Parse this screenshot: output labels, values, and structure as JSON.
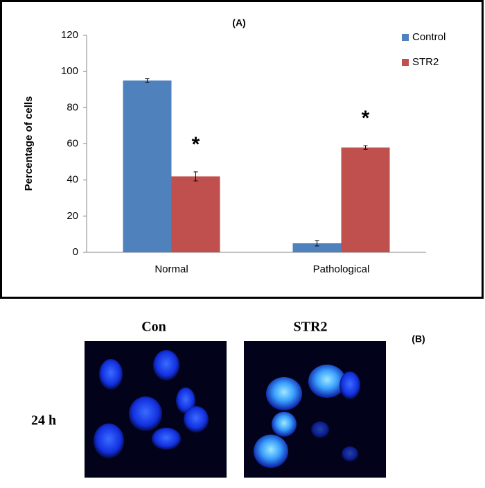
{
  "chart_data": {
    "type": "bar",
    "title": "(A)",
    "y_label": "Percentage of cells",
    "categories": [
      "Normal",
      "Pathological"
    ],
    "series": [
      {
        "name": "Control",
        "color": "#4f81bd",
        "values": [
          95,
          5
        ],
        "errors": [
          1,
          1.5
        ]
      },
      {
        "name": "STR2",
        "color": "#c0504d",
        "values": [
          42,
          58
        ],
        "errors": [
          2.5,
          1
        ]
      }
    ],
    "annotations": [
      "*",
      "*"
    ],
    "ylim": [
      0,
      120
    ],
    "yticks": [
      0,
      20,
      40,
      60,
      80,
      100,
      120
    ],
    "grid": false,
    "legend": "top-right"
  },
  "panel_b": {
    "label": "(B)",
    "columns": [
      "Con",
      "STR2"
    ],
    "row_label": "24 h"
  }
}
